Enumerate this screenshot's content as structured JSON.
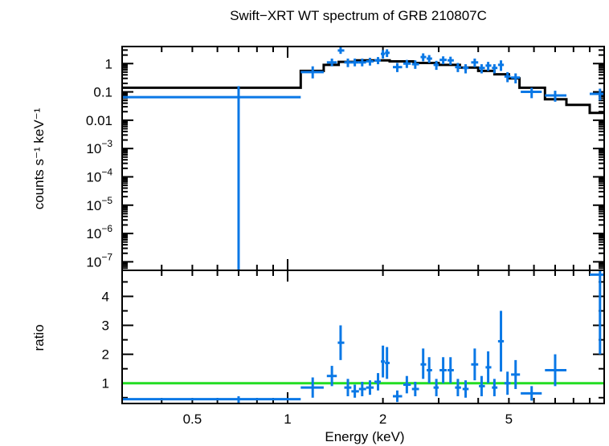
{
  "chart_data": [
    {
      "type": "line",
      "panel": "spectrum",
      "title": "Swift−XRT WT spectrum of GRB 210807C",
      "ylabel": "counts s⁻¹ keV⁻¹",
      "yscale": "log",
      "xscale": "log",
      "xlim": [
        0.3,
        10.0
      ],
      "ylim": [
        5e-08,
        4.0
      ],
      "y_tick_labels": [
        {
          "value": 1,
          "label": "1"
        },
        {
          "value": 0.1,
          "label": "0.1"
        },
        {
          "value": 0.01,
          "label": "0.01"
        },
        {
          "value": 0.001,
          "base": "10",
          "exp": "−3"
        },
        {
          "value": 0.0001,
          "base": "10",
          "exp": "−4"
        },
        {
          "value": 1e-05,
          "base": "10",
          "exp": "−5"
        },
        {
          "value": 1e-06,
          "base": "10",
          "exp": "−6"
        },
        {
          "value": 1e-07,
          "base": "10",
          "exp": "−7"
        }
      ],
      "model_color": "#000000",
      "data_color": "#0a78e6",
      "model": [
        {
          "x0": 0.3,
          "x1": 1.1,
          "y": 0.14
        },
        {
          "x0": 1.1,
          "x1": 1.3,
          "y": 0.55
        },
        {
          "x0": 1.3,
          "x1": 1.45,
          "y": 0.9
        },
        {
          "x0": 1.45,
          "x1": 1.65,
          "y": 1.15
        },
        {
          "x0": 1.65,
          "x1": 2.1,
          "y": 1.3
        },
        {
          "x0": 2.1,
          "x1": 2.5,
          "y": 1.2
        },
        {
          "x0": 2.5,
          "x1": 3.0,
          "y": 1.05
        },
        {
          "x0": 3.0,
          "x1": 3.5,
          "y": 0.9
        },
        {
          "x0": 3.5,
          "x1": 4.0,
          "y": 0.72
        },
        {
          "x0": 4.0,
          "x1": 4.5,
          "y": 0.55
        },
        {
          "x0": 4.5,
          "x1": 5.0,
          "y": 0.42
        },
        {
          "x0": 5.0,
          "x1": 5.4,
          "y": 0.3
        },
        {
          "x0": 5.4,
          "x1": 6.5,
          "y": 0.14
        },
        {
          "x0": 6.5,
          "x1": 7.6,
          "y": 0.055
        },
        {
          "x0": 7.6,
          "x1": 9.0,
          "y": 0.035
        },
        {
          "x0": 9.0,
          "x1": 10.0,
          "y": 0.018
        }
      ],
      "points": [
        {
          "x": 0.7,
          "x0": 0.3,
          "x1": 1.1,
          "y": 0.065,
          "ylo": 5e-08,
          "yhi": 0.16
        },
        {
          "x": 1.2,
          "x0": 1.1,
          "x1": 1.3,
          "y": 0.5,
          "ylo": 0.3,
          "yhi": 0.8
        },
        {
          "x": 1.38,
          "x0": 1.33,
          "x1": 1.43,
          "y": 1.1,
          "ylo": 0.8,
          "yhi": 1.5
        },
        {
          "x": 1.47,
          "x0": 1.44,
          "x1": 1.51,
          "y": 2.9,
          "ylo": 2.2,
          "yhi": 3.8
        },
        {
          "x": 1.55,
          "x0": 1.51,
          "x1": 1.59,
          "y": 1.1,
          "ylo": 0.75,
          "yhi": 1.5
        },
        {
          "x": 1.63,
          "x0": 1.59,
          "x1": 1.68,
          "y": 1.1,
          "ylo": 0.8,
          "yhi": 1.5
        },
        {
          "x": 1.72,
          "x0": 1.68,
          "x1": 1.77,
          "y": 1.1,
          "ylo": 0.8,
          "yhi": 1.5
        },
        {
          "x": 1.82,
          "x0": 1.77,
          "x1": 1.87,
          "y": 1.2,
          "ylo": 0.85,
          "yhi": 1.6
        },
        {
          "x": 1.93,
          "x0": 1.88,
          "x1": 1.97,
          "y": 1.3,
          "ylo": 0.95,
          "yhi": 1.7
        },
        {
          "x": 2.0,
          "x0": 1.97,
          "x1": 2.03,
          "y": 2.2,
          "ylo": 1.5,
          "yhi": 3.0
        },
        {
          "x": 2.06,
          "x0": 2.03,
          "x1": 2.1,
          "y": 2.4,
          "ylo": 1.7,
          "yhi": 3.2
        },
        {
          "x": 2.22,
          "x0": 2.15,
          "x1": 2.3,
          "y": 0.75,
          "ylo": 0.5,
          "yhi": 1.05
        },
        {
          "x": 2.38,
          "x0": 2.32,
          "x1": 2.45,
          "y": 1.0,
          "ylo": 0.7,
          "yhi": 1.35
        },
        {
          "x": 2.53,
          "x0": 2.47,
          "x1": 2.6,
          "y": 0.95,
          "ylo": 0.65,
          "yhi": 1.3
        },
        {
          "x": 2.68,
          "x0": 2.63,
          "x1": 2.74,
          "y": 1.7,
          "ylo": 1.2,
          "yhi": 2.3
        },
        {
          "x": 2.8,
          "x0": 2.75,
          "x1": 2.86,
          "y": 1.5,
          "ylo": 1.05,
          "yhi": 2.0
        },
        {
          "x": 2.95,
          "x0": 2.89,
          "x1": 3.0,
          "y": 0.9,
          "ylo": 0.6,
          "yhi": 1.25
        },
        {
          "x": 3.1,
          "x0": 3.02,
          "x1": 3.18,
          "y": 1.35,
          "ylo": 0.95,
          "yhi": 1.8
        },
        {
          "x": 3.27,
          "x0": 3.2,
          "x1": 3.35,
          "y": 1.3,
          "ylo": 0.9,
          "yhi": 1.75
        },
        {
          "x": 3.45,
          "x0": 3.38,
          "x1": 3.53,
          "y": 0.75,
          "ylo": 0.5,
          "yhi": 1.05
        },
        {
          "x": 3.65,
          "x0": 3.57,
          "x1": 3.73,
          "y": 0.7,
          "ylo": 0.45,
          "yhi": 0.95
        },
        {
          "x": 3.9,
          "x0": 3.8,
          "x1": 4.0,
          "y": 1.1,
          "ylo": 0.75,
          "yhi": 1.5
        },
        {
          "x": 4.1,
          "x0": 4.02,
          "x1": 4.2,
          "y": 0.7,
          "ylo": 0.45,
          "yhi": 0.95
        },
        {
          "x": 4.3,
          "x0": 4.22,
          "x1": 4.4,
          "y": 0.85,
          "ylo": 0.55,
          "yhi": 1.15
        },
        {
          "x": 4.5,
          "x0": 4.42,
          "x1": 4.6,
          "y": 0.7,
          "ylo": 0.45,
          "yhi": 0.95
        },
        {
          "x": 4.72,
          "x0": 4.62,
          "x1": 4.82,
          "y": 0.9,
          "ylo": 0.55,
          "yhi": 1.3
        },
        {
          "x": 4.95,
          "x0": 4.84,
          "x1": 5.06,
          "y": 0.35,
          "ylo": 0.22,
          "yhi": 0.5
        },
        {
          "x": 5.25,
          "x0": 5.08,
          "x1": 5.42,
          "y": 0.32,
          "ylo": 0.2,
          "yhi": 0.45
        },
        {
          "x": 5.9,
          "x0": 5.45,
          "x1": 6.35,
          "y": 0.1,
          "ylo": 0.06,
          "yhi": 0.14
        },
        {
          "x": 7.0,
          "x0": 6.5,
          "x1": 7.6,
          "y": 0.075,
          "ylo": 0.045,
          "yhi": 0.11
        },
        {
          "x": 9.7,
          "x0": 9.0,
          "x1": 10.0,
          "y": 0.085,
          "ylo": 0.05,
          "yhi": 0.13
        }
      ]
    },
    {
      "type": "scatter",
      "panel": "ratio",
      "xlabel": "Energy (keV)",
      "ylabel": "ratio",
      "xscale": "log",
      "xlim": [
        0.3,
        10.0
      ],
      "ylim": [
        0.3,
        4.9
      ],
      "reference_line": {
        "y": 1.0,
        "color": "#22dd22"
      },
      "x_tick_labels": [
        {
          "value": 0.5,
          "label": "0.5"
        },
        {
          "value": 1,
          "label": "1"
        },
        {
          "value": 2,
          "label": "2"
        },
        {
          "value": 5,
          "label": "5"
        }
      ],
      "y_tick_labels": [
        {
          "value": 1,
          "label": "1"
        },
        {
          "value": 2,
          "label": "2"
        },
        {
          "value": 3,
          "label": "3"
        },
        {
          "value": 4,
          "label": "4"
        }
      ],
      "data_color": "#0a78e6",
      "points": [
        {
          "x": 0.7,
          "x0": 0.3,
          "x1": 1.1,
          "y": 0.45,
          "ylo": 0.3,
          "yhi": 0.55
        },
        {
          "x": 1.2,
          "x0": 1.1,
          "x1": 1.3,
          "y": 0.85,
          "ylo": 0.5,
          "yhi": 1.2
        },
        {
          "x": 1.38,
          "x0": 1.33,
          "x1": 1.43,
          "y": 1.25,
          "ylo": 0.9,
          "yhi": 1.6
        },
        {
          "x": 1.47,
          "x0": 1.44,
          "x1": 1.51,
          "y": 2.4,
          "ylo": 1.8,
          "yhi": 3.0
        },
        {
          "x": 1.55,
          "x0": 1.51,
          "x1": 1.59,
          "y": 0.85,
          "ylo": 0.55,
          "yhi": 1.15
        },
        {
          "x": 1.63,
          "x0": 1.59,
          "x1": 1.68,
          "y": 0.72,
          "ylo": 0.5,
          "yhi": 0.95
        },
        {
          "x": 1.72,
          "x0": 1.68,
          "x1": 1.77,
          "y": 0.8,
          "ylo": 0.55,
          "yhi": 1.05
        },
        {
          "x": 1.82,
          "x0": 1.77,
          "x1": 1.87,
          "y": 0.85,
          "ylo": 0.6,
          "yhi": 1.1
        },
        {
          "x": 1.93,
          "x0": 1.88,
          "x1": 1.97,
          "y": 1.05,
          "ylo": 0.75,
          "yhi": 1.35
        },
        {
          "x": 2.0,
          "x0": 1.97,
          "x1": 2.03,
          "y": 1.75,
          "ylo": 1.2,
          "yhi": 2.3
        },
        {
          "x": 2.06,
          "x0": 2.03,
          "x1": 2.1,
          "y": 1.7,
          "ylo": 1.15,
          "yhi": 2.25
        },
        {
          "x": 2.22,
          "x0": 2.15,
          "x1": 2.3,
          "y": 0.55,
          "ylo": 0.35,
          "yhi": 0.75
        },
        {
          "x": 2.38,
          "x0": 2.32,
          "x1": 2.45,
          "y": 0.95,
          "ylo": 0.65,
          "yhi": 1.25
        },
        {
          "x": 2.53,
          "x0": 2.47,
          "x1": 2.6,
          "y": 0.8,
          "ylo": 0.55,
          "yhi": 1.05
        },
        {
          "x": 2.68,
          "x0": 2.63,
          "x1": 2.74,
          "y": 1.65,
          "ylo": 1.15,
          "yhi": 2.2
        },
        {
          "x": 2.8,
          "x0": 2.75,
          "x1": 2.86,
          "y": 1.45,
          "ylo": 1.0,
          "yhi": 1.9
        },
        {
          "x": 2.95,
          "x0": 2.89,
          "x1": 3.0,
          "y": 0.85,
          "ylo": 0.55,
          "yhi": 1.15
        },
        {
          "x": 3.1,
          "x0": 3.02,
          "x1": 3.18,
          "y": 1.45,
          "ylo": 1.0,
          "yhi": 1.9
        },
        {
          "x": 3.27,
          "x0": 3.2,
          "x1": 3.35,
          "y": 1.45,
          "ylo": 1.0,
          "yhi": 1.9
        },
        {
          "x": 3.45,
          "x0": 3.38,
          "x1": 3.53,
          "y": 0.85,
          "ylo": 0.55,
          "yhi": 1.15
        },
        {
          "x": 3.65,
          "x0": 3.57,
          "x1": 3.73,
          "y": 0.8,
          "ylo": 0.5,
          "yhi": 1.1
        },
        {
          "x": 3.9,
          "x0": 3.8,
          "x1": 4.0,
          "y": 1.65,
          "ylo": 1.1,
          "yhi": 2.2
        },
        {
          "x": 4.1,
          "x0": 4.02,
          "x1": 4.2,
          "y": 0.9,
          "ylo": 0.55,
          "yhi": 1.25
        },
        {
          "x": 4.3,
          "x0": 4.22,
          "x1": 4.4,
          "y": 1.55,
          "ylo": 1.0,
          "yhi": 2.1
        },
        {
          "x": 4.5,
          "x0": 4.42,
          "x1": 4.6,
          "y": 0.85,
          "ylo": 0.55,
          "yhi": 1.15
        },
        {
          "x": 4.72,
          "x0": 4.62,
          "x1": 4.82,
          "y": 2.45,
          "ylo": 1.4,
          "yhi": 3.5
        },
        {
          "x": 4.95,
          "x0": 4.84,
          "x1": 5.06,
          "y": 1.0,
          "ylo": 0.6,
          "yhi": 1.4
        },
        {
          "x": 5.25,
          "x0": 5.08,
          "x1": 5.42,
          "y": 1.3,
          "ylo": 0.8,
          "yhi": 1.8
        },
        {
          "x": 5.9,
          "x0": 5.45,
          "x1": 6.35,
          "y": 0.65,
          "ylo": 0.4,
          "yhi": 0.9
        },
        {
          "x": 7.0,
          "x0": 6.5,
          "x1": 7.6,
          "y": 1.45,
          "ylo": 0.9,
          "yhi": 2.0
        },
        {
          "x": 9.7,
          "x0": 9.0,
          "x1": 10.0,
          "y": 4.75,
          "ylo": 2.0,
          "yhi": 4.9
        }
      ]
    }
  ]
}
